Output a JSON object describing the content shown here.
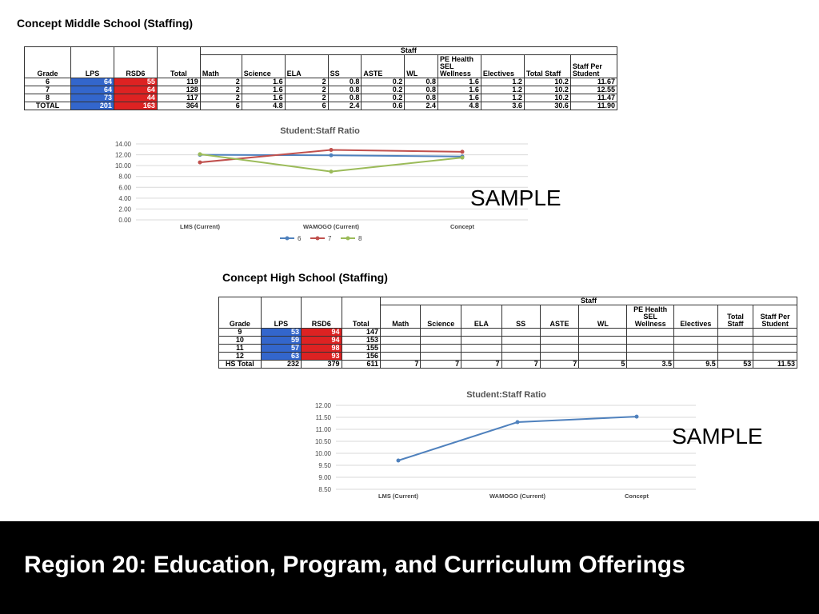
{
  "ms": {
    "title": "Concept Middle School (Staffing)",
    "table": {
      "staff_label": "Staff",
      "headers": [
        "Grade",
        "LPS",
        "RSD6",
        "Total",
        "Math",
        "Science",
        "ELA",
        "SS",
        "ASTE",
        "WL",
        "PE Health SEL Wellness",
        "Electives",
        "Total Staff",
        "Staff Per Student"
      ],
      "rows": [
        [
          "6",
          "64",
          "55",
          "119",
          "2",
          "1.6",
          "2",
          "0.8",
          "0.2",
          "0.8",
          "1.6",
          "1.2",
          "10.2",
          "11.67"
        ],
        [
          "7",
          "64",
          "64",
          "128",
          "2",
          "1.6",
          "2",
          "0.8",
          "0.2",
          "0.8",
          "1.6",
          "1.2",
          "10.2",
          "12.55"
        ],
        [
          "8",
          "73",
          "44",
          "117",
          "2",
          "1.6",
          "2",
          "0.8",
          "0.2",
          "0.8",
          "1.6",
          "1.2",
          "10.2",
          "11.47"
        ],
        [
          "TOTAL",
          "201",
          "163",
          "364",
          "6",
          "4.8",
          "6",
          "2.4",
          "0.6",
          "2.4",
          "4.8",
          "3.6",
          "30.6",
          "11.90"
        ]
      ]
    },
    "sample_label": "SAMPLE"
  },
  "hs": {
    "title": "Concept High School (Staffing)",
    "table": {
      "staff_label": "Staff",
      "headers": [
        "Grade",
        "LPS",
        "RSD6",
        "Total",
        "Math",
        "Science",
        "ELA",
        "SS",
        "ASTE",
        "WL",
        "PE Health SEL Wellness",
        "Electives",
        "Total Staff",
        "Staff Per Student"
      ],
      "rows": [
        [
          "9",
          "53",
          "94",
          "147"
        ],
        [
          "10",
          "59",
          "94",
          "153"
        ],
        [
          "11",
          "57",
          "98",
          "155"
        ],
        [
          "12",
          "63",
          "93",
          "156"
        ]
      ],
      "total_row": [
        "HS Total",
        "232",
        "379",
        "611",
        "7",
        "7",
        "7",
        "7",
        "7",
        "5",
        "3.5",
        "9.5",
        "53",
        "11.53"
      ]
    },
    "sample_label": "SAMPLE"
  },
  "footer": {
    "title": "Region 20: Education, Program, and Curriculum Offerings"
  },
  "colors": {
    "blue_cell": "#3366cc",
    "red_cell": "#dd2222",
    "series_6": "#4f81bd",
    "series_7": "#c0504d",
    "series_8": "#9bbb59"
  },
  "chart_data": [
    {
      "type": "line",
      "title": "Student:Staff Ratio",
      "categories": [
        "LMS (Current)",
        "WAMOGO (Current)",
        "Concept"
      ],
      "series": [
        {
          "name": "6",
          "values": [
            12.0,
            11.9,
            11.67
          ]
        },
        {
          "name": "7",
          "values": [
            10.6,
            12.9,
            12.55
          ]
        },
        {
          "name": "8",
          "values": [
            12.1,
            8.9,
            11.47
          ]
        }
      ],
      "ylim": [
        0,
        14
      ],
      "yticks": [
        "0.00",
        "2.00",
        "4.00",
        "6.00",
        "8.00",
        "10.00",
        "12.00",
        "14.00"
      ],
      "grid": true,
      "legend": "bottom"
    },
    {
      "type": "line",
      "title": "Student:Staff Ratio",
      "categories": [
        "LMS (Current)",
        "WAMOGO (Current)",
        "Concept"
      ],
      "series": [
        {
          "values": [
            9.7,
            11.3,
            11.53
          ]
        }
      ],
      "ylim": [
        8.5,
        12
      ],
      "yticks": [
        "8.50",
        "9.00",
        "9.50",
        "10.00",
        "10.50",
        "11.00",
        "11.50",
        "12.00"
      ],
      "grid": true
    }
  ]
}
